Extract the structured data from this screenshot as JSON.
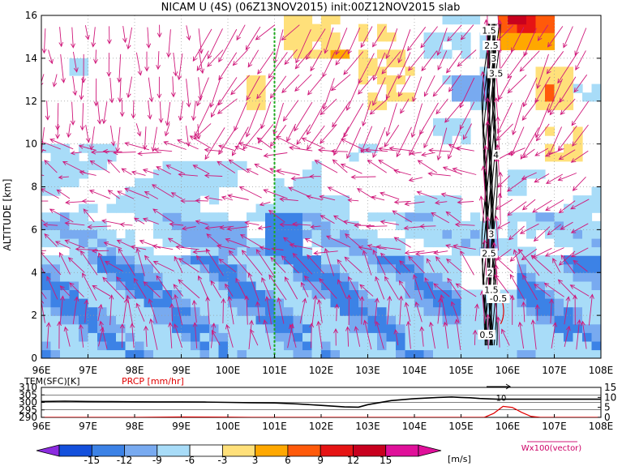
{
  "title": "NICAM U (4S) (06Z13NOV2015) init:00Z12NOV2015 slab",
  "chart_data": [
    {
      "type": "heatmap",
      "title": "NICAM U (4S) (06Z13NOV2015) init:00Z12NOV2015 slab",
      "xlabel": "",
      "ylabel": "ALTITUDE [km]",
      "xlim": [
        96,
        108
      ],
      "ylim": [
        0,
        16
      ],
      "grid": true,
      "x_ticks": [
        "96E",
        "97E",
        "98E",
        "99E",
        "100E",
        "101E",
        "102E",
        "103E",
        "104E",
        "105E",
        "106E",
        "107E",
        "108E"
      ],
      "y_ticks": [
        "0",
        "2",
        "4",
        "6",
        "8",
        "10",
        "12",
        "14",
        "16"
      ],
      "reference_line_lon": 101.0,
      "contour_labels": [
        {
          "text": "1.5",
          "lon": 105.6,
          "alt": 15.3
        },
        {
          "text": "2.5",
          "lon": 105.65,
          "alt": 14.6
        },
        {
          "text": "3",
          "lon": 105.7,
          "alt": 14.0
        },
        {
          "text": "3.5",
          "lon": 105.75,
          "alt": 13.3
        },
        {
          "text": "4",
          "lon": 105.75,
          "alt": 9.5
        },
        {
          "text": "3",
          "lon": 105.65,
          "alt": 5.8
        },
        {
          "text": "2.5",
          "lon": 105.6,
          "alt": 4.9
        },
        {
          "text": "2",
          "lon": 105.62,
          "alt": 4.0
        },
        {
          "text": "1.5",
          "lon": 105.65,
          "alt": 3.2
        },
        {
          "text": "-0.5",
          "lon": 105.8,
          "alt": 2.8
        },
        {
          "text": "0.5",
          "lon": 105.55,
          "alt": 1.1
        }
      ]
    },
    {
      "type": "line",
      "x_ticks": [
        "96E",
        "97E",
        "98E",
        "99E",
        "100E",
        "101E",
        "102E",
        "103E",
        "104E",
        "105E",
        "106E",
        "107E",
        "108E"
      ],
      "left_axis_label": "TEM(SFC)[K]",
      "right_axis_label": "PRCP [mm/hr]",
      "left_ticks": [
        "310",
        "305",
        "300",
        "295",
        "290"
      ],
      "right_ticks": [
        "15",
        "10",
        "5",
        "0"
      ],
      "left_ylim": [
        290,
        310
      ],
      "right_ylim": [
        0,
        15
      ],
      "inline_label": "10",
      "series": [
        {
          "name": "TEM(SFC)[K]",
          "color": "#000000",
          "x": [
            96,
            96.5,
            97,
            97.5,
            98,
            98.5,
            99,
            99.5,
            100,
            100.5,
            101,
            101.5,
            102,
            102.5,
            102.8,
            103,
            103.5,
            104,
            104.5,
            104.8,
            105,
            105.2,
            105.4,
            105.6,
            105.8,
            106,
            106.5,
            107,
            107.5,
            108
          ],
          "values": [
            300.6,
            300.8,
            300.6,
            300.5,
            300.4,
            300.3,
            300.3,
            300.2,
            300.0,
            299.8,
            299.6,
            299.0,
            298.0,
            297.0,
            296.8,
            298.5,
            301.2,
            302.5,
            303.3,
            303.6,
            303.3,
            303.1,
            302.6,
            302.3,
            302.1,
            302.1,
            302.1,
            302.1,
            302.1,
            302.1
          ]
        },
        {
          "name": "PRCP [mm/hr]",
          "color": "#e00000",
          "x": [
            96,
            98,
            99,
            100,
            100.5,
            101,
            105.5,
            105.7,
            105.9,
            106.1,
            106.3,
            106.5,
            106.7,
            107,
            108
          ],
          "values": [
            0,
            0,
            0.2,
            0.1,
            0,
            0,
            0,
            2.0,
            5.5,
            5.0,
            2.5,
            0.5,
            0,
            0,
            0
          ]
        }
      ]
    }
  ],
  "colorbar": {
    "ticks": [
      "-15",
      "-12",
      "-9",
      "-6",
      "-3",
      "3",
      "6",
      "9",
      "12",
      "15"
    ],
    "unit": "[m/s]",
    "colors": [
      "#8c2be0",
      "#1450dc",
      "#3c82e6",
      "#78aaf0",
      "#a8dcf8",
      "#ffffff",
      "#ffe07a",
      "#ffa800",
      "#ff5a0a",
      "#e61414",
      "#c8001e",
      "#e0109a"
    ]
  },
  "vector_label": "Wx100(vector)"
}
